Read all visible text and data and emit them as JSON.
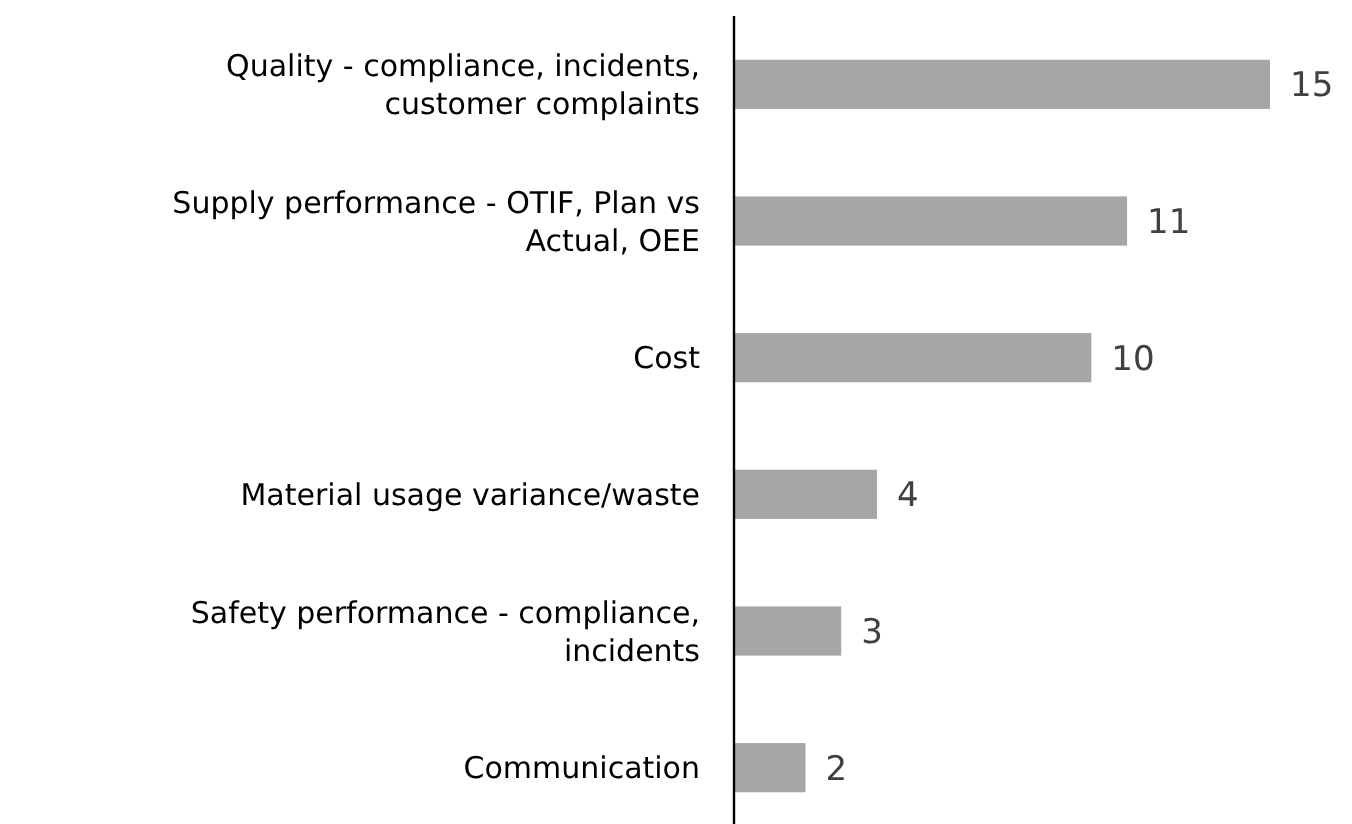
{
  "chart_data": {
    "type": "bar",
    "orientation": "horizontal",
    "categories": [
      "Quality - compliance, incidents, customer complaints",
      "Supply performance - OTIF, Plan vs Actual, OEE",
      "Cost",
      "Material usage variance/waste",
      "Safety performance - compliance, incidents",
      "Communication"
    ],
    "values": [
      15,
      11,
      10,
      4,
      3,
      2
    ],
    "color": "#a6a6a6",
    "data_labels": true
  }
}
